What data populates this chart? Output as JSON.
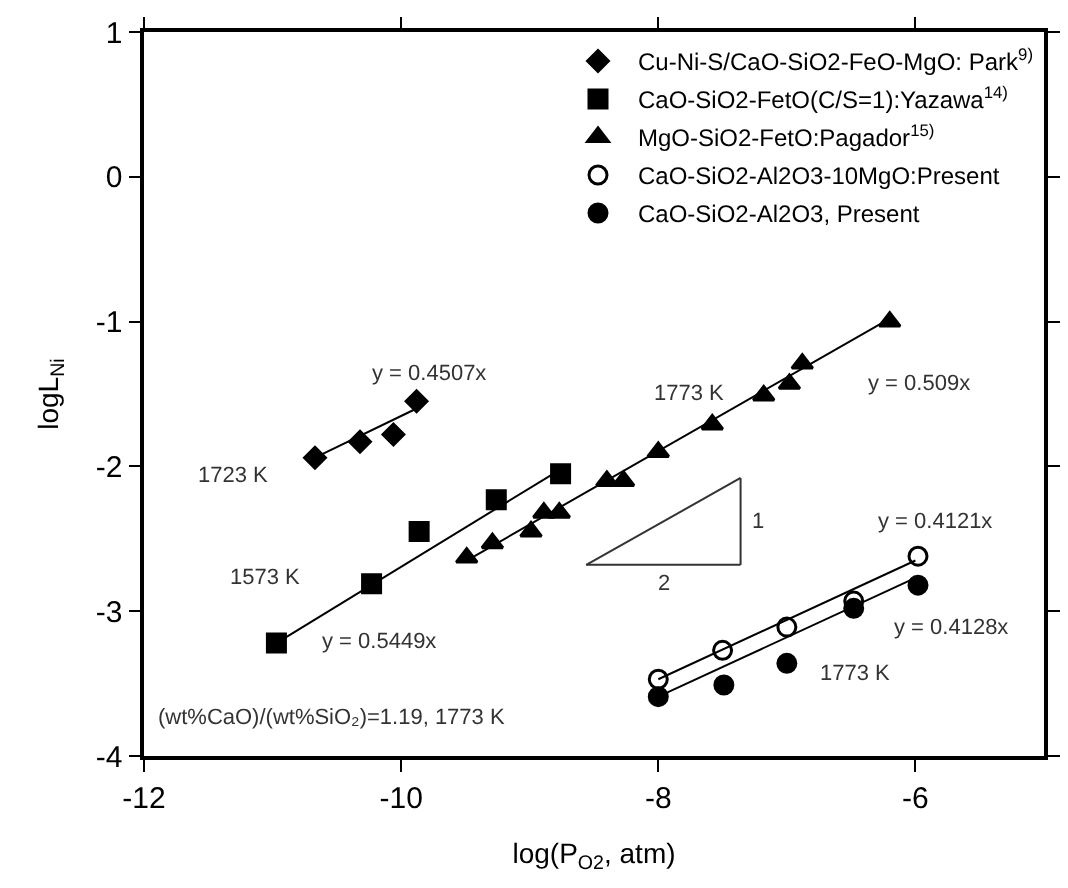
{
  "chart_data": {
    "type": "scatter",
    "xlabel": "log(P$_{O2}$, atm)",
    "ylabel": "logL$_{Ni}$",
    "xlim": [
      -12,
      -5
    ],
    "xticks": [
      -12,
      -10,
      -8,
      -6
    ],
    "ylim": [
      -4,
      1
    ],
    "yticks": [
      -4,
      -3,
      -2,
      -1,
      0,
      1
    ],
    "legend": "top right",
    "series": [
      {
        "name": "Cu-Ni-S/CaO-SiO2-FeO-MgO: Park$^{9)}$",
        "color": "#000000",
        "marker": "diamond",
        "x": [
          -10.67,
          -10.32,
          -10.06,
          -9.88
        ],
        "values": [
          -1.94,
          -1.83,
          -1.78,
          -1.55
        ]
      },
      {
        "name": "CaO-SiO2-FetO(C/S=1):Yazawa$^{14)}$",
        "color": "#000000",
        "marker": "square",
        "x": [
          -10.97,
          -10.23,
          -9.86,
          -9.26,
          -8.76
        ],
        "values": [
          -3.22,
          -2.81,
          -2.45,
          -2.23,
          -2.05
        ]
      },
      {
        "name": "MgO-SiO2-FetO:Pagador$^{15)}$",
        "color": "#000000",
        "marker": "triangle",
        "x": [
          -9.49,
          -9.29,
          -8.99,
          -8.89,
          -8.77,
          -8.4,
          -8.27,
          -8.0,
          -7.58,
          -7.18,
          -6.98,
          -6.88,
          -6.2
        ],
        "values": [
          -2.63,
          -2.53,
          -2.45,
          -2.32,
          -2.32,
          -2.1,
          -2.1,
          -1.9,
          -1.71,
          -1.51,
          -1.43,
          -1.29,
          -1.0
        ]
      },
      {
        "name": "CaO-SiO2-Al2O3-10MgO:Present",
        "color": "#000000",
        "marker": "circle-open",
        "x": [
          -8.0,
          -7.5,
          -7.0,
          -6.48,
          -5.98
        ],
        "values": [
          -3.47,
          -3.27,
          -3.11,
          -2.93,
          -2.62
        ]
      },
      {
        "name": "CaO-SiO2-Al2O3, Present",
        "color": "#000000",
        "marker": "circle",
        "x": [
          -8.0,
          -7.49,
          -7.0,
          -6.48,
          -5.98
        ],
        "values": [
          -3.59,
          -3.51,
          -3.36,
          -2.98,
          -2.82
        ]
      },
      {
        "type": "line",
        "color": "#000000",
        "marker": "none",
        "x": [
          -10.67,
          -9.88
        ],
        "values": [
          -1.94,
          -1.6
        ]
      },
      {
        "type": "line",
        "color": "#000000",
        "marker": "none",
        "x": [
          -10.97,
          -8.76
        ],
        "values": [
          -3.22,
          -2.02
        ]
      },
      {
        "type": "line",
        "color": "#000000",
        "marker": "none",
        "x": [
          -9.49,
          -6.2
        ],
        "values": [
          -2.65,
          -0.98
        ]
      },
      {
        "type": "line",
        "color": "#000000",
        "marker": "none",
        "x": [
          -8.0,
          -6.0
        ],
        "values": [
          -3.47,
          -2.65
        ]
      },
      {
        "type": "line",
        "color": "#000000",
        "marker": "none",
        "x": [
          -8.0,
          -6.0
        ],
        "values": [
          -3.59,
          -2.77
        ]
      },
      {
        "type": "line",
        "color": "#333333",
        "marker": "none",
        "x": [
          -8.56,
          -7.36
        ],
        "values": [
          -2.68,
          -2.08
        ]
      },
      {
        "type": "line",
        "color": "#333333",
        "marker": "none",
        "x": [
          -8.56,
          -7.36
        ],
        "values": [
          -2.68,
          -2.68
        ]
      },
      {
        "type": "line",
        "color": "#333333",
        "marker": "none",
        "x": [
          -7.36,
          -7.36
        ],
        "values": [
          -2.68,
          -2.08
        ]
      }
    ],
    "annotations": [
      "y = 0.4507x",
      "1723 K",
      "1573 K",
      "y = 0.5449x",
      "1773 K",
      "y = 0.509x",
      "y = 0.4121x",
      "y = 0.4128x",
      "1773 K",
      "(wt%CaO)/(wt%SiO₂)=1.19, 1773 K",
      "1",
      "2"
    ]
  }
}
